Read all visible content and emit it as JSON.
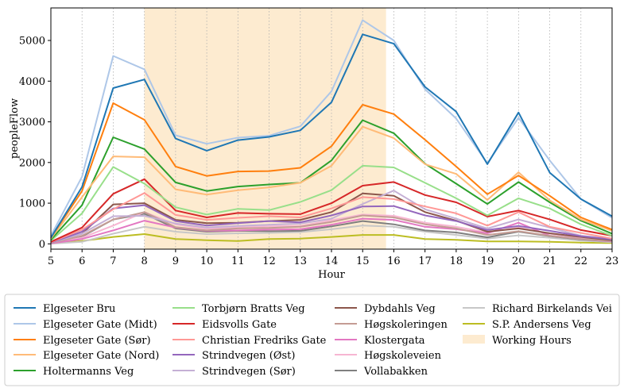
{
  "chart_data": {
    "type": "line",
    "title": "",
    "xlabel": "Hour",
    "ylabel": "peopleFlow",
    "xlim": [
      5,
      23
    ],
    "ylim": [
      -130,
      5800
    ],
    "x": [
      5,
      6,
      7,
      8,
      9,
      10,
      11,
      12,
      13,
      14,
      15,
      16,
      17,
      18,
      19,
      20,
      21,
      22,
      23
    ],
    "xticks": [
      5,
      6,
      7,
      8,
      9,
      10,
      11,
      12,
      13,
      14,
      15,
      16,
      17,
      18,
      19,
      20,
      21,
      22,
      23
    ],
    "yticks": [
      0,
      1000,
      2000,
      3000,
      4000,
      5000
    ],
    "shaded_region": {
      "label": "Working Hours",
      "x_start": 8,
      "x_end": 15.75,
      "color": "#fdebd0"
    },
    "legend_position": "bottom",
    "series": [
      {
        "name": "Elgeseter Bru",
        "color": "#1f77b4",
        "values": [
          150,
          1400,
          3830,
          4040,
          2590,
          2290,
          2550,
          2630,
          2790,
          3480,
          5150,
          4920,
          3860,
          3250,
          1960,
          3230,
          1750,
          1100,
          680
        ]
      },
      {
        "name": "Elgeseter Gate (Midt)",
        "color": "#aec7e8",
        "values": [
          200,
          1650,
          4620,
          4290,
          2670,
          2460,
          2610,
          2660,
          2890,
          3750,
          5500,
          5000,
          3800,
          3080,
          1980,
          3100,
          2050,
          1100,
          640
        ]
      },
      {
        "name": "Elgeseter Gate (Sør)",
        "color": "#ff7f0e",
        "values": [
          150,
          1300,
          3460,
          3050,
          1900,
          1670,
          1780,
          1790,
          1870,
          2400,
          3420,
          3190,
          2560,
          1900,
          1220,
          1680,
          1180,
          650,
          350
        ]
      },
      {
        "name": "Elgeseter Gate (Nord)",
        "color": "#ffbb78",
        "values": [
          130,
          1150,
          2150,
          2130,
          1340,
          1210,
          1320,
          1390,
          1500,
          1920,
          2880,
          2600,
          1960,
          1720,
          1080,
          1760,
          1070,
          600,
          320
        ]
      },
      {
        "name": "Holtermanns Veg",
        "color": "#2ca02c",
        "values": [
          100,
          950,
          2620,
          2330,
          1510,
          1300,
          1410,
          1460,
          1500,
          2050,
          3040,
          2720,
          1970,
          1480,
          980,
          1520,
          1020,
          570,
          250
        ]
      },
      {
        "name": "Torbjørn Bratts Veg",
        "color": "#98df8a",
        "values": [
          80,
          750,
          1890,
          1480,
          900,
          720,
          860,
          830,
          1030,
          1320,
          1920,
          1880,
          1500,
          1120,
          700,
          1120,
          870,
          480,
          200
        ]
      },
      {
        "name": "Eidsvolls Gate",
        "color": "#d62728",
        "values": [
          50,
          400,
          1230,
          1590,
          820,
          650,
          760,
          740,
          730,
          1000,
          1430,
          1520,
          1200,
          1020,
          670,
          820,
          600,
          340,
          200
        ]
      },
      {
        "name": "Christian Fredriks Gate",
        "color": "#ff9896",
        "values": [
          40,
          350,
          850,
          1250,
          710,
          590,
          640,
          680,
          650,
          870,
          1150,
          1100,
          920,
          750,
          450,
          780,
          420,
          270,
          130
        ]
      },
      {
        "name": "Strindvegen (Øst)",
        "color": "#9467bd",
        "values": [
          30,
          300,
          870,
          950,
          560,
          450,
          510,
          560,
          530,
          700,
          920,
          930,
          700,
          560,
          340,
          440,
          320,
          190,
          110
        ]
      },
      {
        "name": "Strindvegen (Sør)",
        "color": "#c5b0d5",
        "values": [
          25,
          250,
          680,
          690,
          500,
          400,
          440,
          470,
          500,
          620,
          980,
          1310,
          850,
          620,
          380,
          600,
          400,
          200,
          120
        ]
      },
      {
        "name": "Dybdahls Veg",
        "color": "#8c564b",
        "values": [
          30,
          250,
          970,
          1000,
          590,
          510,
          520,
          560,
          590,
          780,
          1240,
          1180,
          780,
          570,
          300,
          380,
          260,
          170,
          90
        ]
      },
      {
        "name": "Høgskoleringen",
        "color": "#c49c94",
        "values": [
          20,
          200,
          600,
          780,
          410,
          330,
          380,
          390,
          420,
          540,
          700,
          650,
          480,
          380,
          220,
          310,
          200,
          120,
          70
        ]
      },
      {
        "name": "Klostergata",
        "color": "#e377c2",
        "values": [
          10,
          120,
          330,
          570,
          400,
          320,
          330,
          350,
          360,
          470,
          620,
          590,
          420,
          360,
          260,
          520,
          200,
          120,
          60
        ]
      },
      {
        "name": "Høgskoleveien",
        "color": "#f7b6d2",
        "values": [
          15,
          150,
          450,
          780,
          480,
          370,
          400,
          430,
          440,
          580,
          720,
          690,
          520,
          420,
          280,
          400,
          250,
          150,
          80
        ]
      },
      {
        "name": "Vollabakken",
        "color": "#7f7f7f",
        "values": [
          20,
          180,
          600,
          740,
          380,
          300,
          320,
          310,
          320,
          430,
          560,
          480,
          330,
          280,
          160,
          300,
          190,
          110,
          60
        ]
      },
      {
        "name": "Richard Birkelands Vei",
        "color": "#c7c7c7",
        "values": [
          5,
          50,
          250,
          420,
          300,
          240,
          260,
          270,
          290,
          360,
          450,
          420,
          300,
          220,
          130,
          210,
          150,
          80,
          40
        ]
      },
      {
        "name": "S.P. Andersens Veg",
        "color": "#bcbd22",
        "values": [
          10,
          70,
          170,
          240,
          120,
          90,
          70,
          120,
          130,
          170,
          220,
          220,
          120,
          100,
          60,
          60,
          50,
          30,
          20
        ]
      }
    ]
  }
}
